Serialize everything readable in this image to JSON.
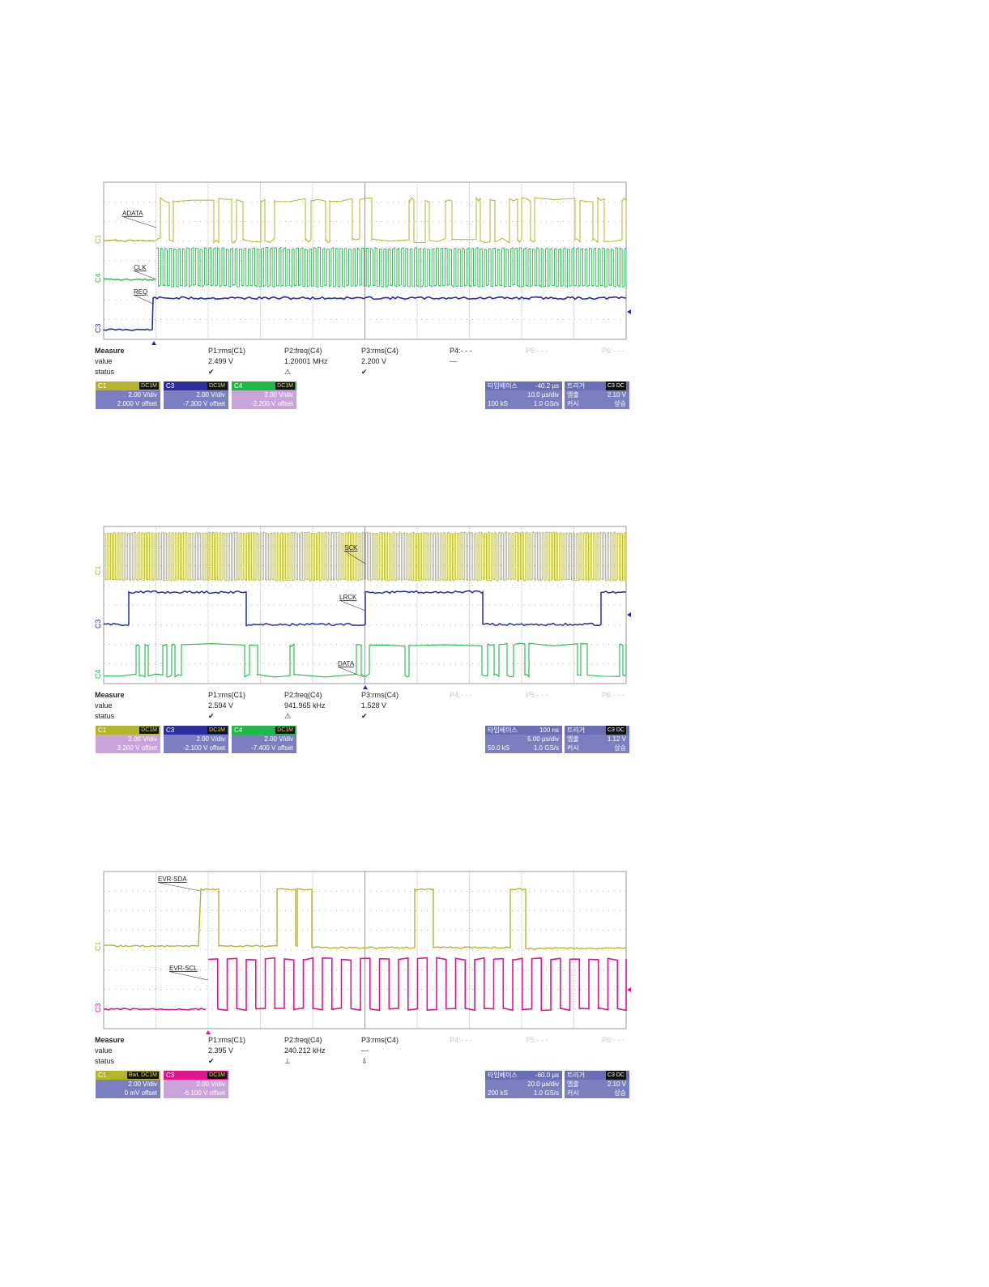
{
  "colors": {
    "yellow": "#b5b52c",
    "green": "#21b84a",
    "blue": "#2a2f9c",
    "magenta": "#e0168c",
    "grid": "#9a9a9a",
    "panel_bg": "#7c7fbf"
  },
  "chart_data": [
    {
      "type": "line",
      "title": "",
      "grid": true,
      "x_divisions": 10,
      "y_divisions": 8,
      "series": [
        {
          "name": "ADATA",
          "channel": "C1",
          "color": "#b5b52c",
          "signal": "digital-data",
          "level_low": 2.0,
          "level_high": 5.0
        },
        {
          "name": "CLK",
          "channel": "C4",
          "color": "#21b84a",
          "signal": "clock",
          "level_low": 2.2,
          "level_high": 5.0
        },
        {
          "name": "REQ",
          "channel": "C3",
          "color": "#2a2f9c",
          "signal": "step",
          "level_low": 0,
          "level_high": 3.3
        }
      ],
      "annotations": [
        "ADATA",
        "CLK",
        "REQ"
      ],
      "channel_labels": [
        "C1",
        "C4",
        "C3"
      ],
      "measure": {
        "header": "Measure",
        "row_labels": [
          "value",
          "status"
        ],
        "columns": [
          {
            "name": "P1:rms(C1)",
            "value": "2.499 V",
            "status": "✔"
          },
          {
            "name": "P2:freq(C4)",
            "value": "1.20001 MHz",
            "status": "⚠"
          },
          {
            "name": "P3:rms(C4)",
            "value": "2.200 V",
            "status": "✔"
          },
          {
            "name": "P4:- - -",
            "value": "---",
            "status": ""
          },
          {
            "name": "P5:- - -",
            "value": "",
            "status": "",
            "dim": true
          },
          {
            "name": "P6:- - -",
            "value": "",
            "status": "",
            "dim": true
          }
        ]
      },
      "channels": [
        {
          "name": "C1",
          "tag": "DC1M",
          "vdiv": "2.00 V/div",
          "offset": "2.000 V offset",
          "color": "#b5b52c",
          "body": "#7c7fbf"
        },
        {
          "name": "C3",
          "tag": "DC1M",
          "vdiv": "2.00 V/div",
          "offset": "-7.300 V offset",
          "color": "#2a2f9c",
          "body": "#7c7fbf"
        },
        {
          "name": "C4",
          "tag": "DC1M",
          "vdiv": "2.00 V/div",
          "offset": "-2.200 V offset",
          "color": "#21b84a",
          "body": "#c9a3d9"
        }
      ],
      "timebase": {
        "label": "타임베이스",
        "delay": "-40.2 µs",
        "div": "10.0 µs/div",
        "samples": "100 kS",
        "rate": "1.0 GS/s"
      },
      "trigger": {
        "label": "트리거",
        "tag": "C3 DC",
        "mode_label": "엠출",
        "level": "2.10 V",
        "slope_label": "커시",
        "slope": "상승"
      }
    },
    {
      "type": "line",
      "title": "",
      "grid": true,
      "x_divisions": 10,
      "y_divisions": 8,
      "series": [
        {
          "name": "SCK",
          "channel": "C1",
          "color": "#b5b52c",
          "signal": "clock"
        },
        {
          "name": "LRCK",
          "channel": "C3",
          "color": "#2a2f9c",
          "signal": "square"
        },
        {
          "name": "DATA",
          "channel": "C4",
          "color": "#21b84a",
          "signal": "digital-data"
        }
      ],
      "annotations": [
        "SCK",
        "LRCK",
        "DATA"
      ],
      "channel_labels": [
        "C1",
        "C3",
        "C4"
      ],
      "measure": {
        "header": "Measure",
        "row_labels": [
          "value",
          "status"
        ],
        "columns": [
          {
            "name": "P1:rms(C1)",
            "value": "2.594 V",
            "status": "✔"
          },
          {
            "name": "P2:freq(C4)",
            "value": "941.965 kHz",
            "status": "⚠"
          },
          {
            "name": "P3:rms(C4)",
            "value": "1.528 V",
            "status": "✔"
          },
          {
            "name": "P4:- - -",
            "value": "",
            "status": "",
            "dim": true
          },
          {
            "name": "P5:- - -",
            "value": "",
            "status": "",
            "dim": true
          },
          {
            "name": "P6:- - -",
            "value": "",
            "status": "",
            "dim": true
          }
        ]
      },
      "channels": [
        {
          "name": "C1",
          "tag": "DC1M",
          "vdiv": "2.00 V/div",
          "offset": "3.200 V offset",
          "color": "#b5b52c",
          "body": "#c9a3d9"
        },
        {
          "name": "C3",
          "tag": "DC1M",
          "vdiv": "2.00 V/div",
          "offset": "-2.100 V offset",
          "color": "#2a2f9c",
          "body": "#7c7fbf"
        },
        {
          "name": "C4",
          "tag": "DC1M",
          "vdiv": "2.00 V/div",
          "offset": "-7.400 V offset",
          "color": "#21b84a",
          "body": "#7c7fbf"
        }
      ],
      "timebase": {
        "label": "타임베이스",
        "delay": "100 ns",
        "div": "5.00 µs/div",
        "samples": "50.0 kS",
        "rate": "1.0 GS/s"
      },
      "trigger": {
        "label": "트리거",
        "tag": "C3 DC",
        "mode_label": "엠출",
        "level": "1.12 V",
        "slope_label": "커시",
        "slope": "상승"
      }
    },
    {
      "type": "line",
      "title": "",
      "grid": true,
      "x_divisions": 10,
      "y_divisions": 8,
      "series": [
        {
          "name": "EVR-SDA",
          "channel": "C1",
          "color": "#b5b52c",
          "signal": "digital-data"
        },
        {
          "name": "EVR-SCL",
          "channel": "C3",
          "color": "#e0168c",
          "signal": "clock"
        }
      ],
      "annotations": [
        "EVR-SDA",
        "EVR-SCL"
      ],
      "channel_labels": [
        "C1",
        "C3"
      ],
      "measure": {
        "header": "Measure",
        "row_labels": [
          "value",
          "status"
        ],
        "columns": [
          {
            "name": "P1:rms(C1)",
            "value": "2.395 V",
            "status": "✔"
          },
          {
            "name": "P2:freq(C4)",
            "value": "240.212 kHz",
            "status": "⊥"
          },
          {
            "name": "P3:rms(C4)",
            "value": "---",
            "status": "⇩"
          },
          {
            "name": "P4:- - -",
            "value": "",
            "status": "",
            "dim": true
          },
          {
            "name": "P5:- - -",
            "value": "",
            "status": "",
            "dim": true
          },
          {
            "name": "P6:- - -",
            "value": "",
            "status": "",
            "dim": true
          }
        ]
      },
      "channels": [
        {
          "name": "C1",
          "tag": "BwL DC1M",
          "vdiv": "2.00 V/div",
          "offset": "0 mV offset",
          "color": "#b5b52c",
          "body": "#7c7fbf"
        },
        {
          "name": "C3",
          "tag": "DC1M",
          "vdiv": "2.00 V/div",
          "offset": "-6.100 V offset",
          "color": "#e0168c",
          "body": "#c9a3d9"
        }
      ],
      "timebase": {
        "label": "타임베이스",
        "delay": "-60.0 µs",
        "div": "20.0 µs/div",
        "samples": "200 kS",
        "rate": "1.0 GS/s"
      },
      "trigger": {
        "label": "트리거",
        "tag": "C3 DC",
        "mode_label": "엠출",
        "level": "2.10 V",
        "slope_label": "커시",
        "slope": "상승"
      }
    }
  ]
}
